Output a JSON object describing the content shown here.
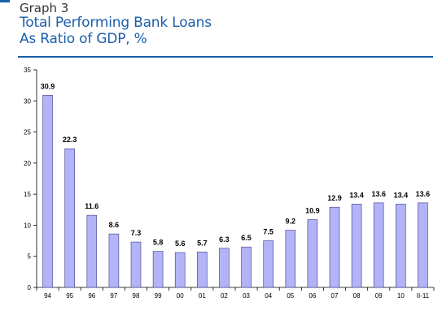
{
  "header": {
    "graph_number": "Graph 3",
    "title_line1": "Total Performing Bank Loans",
    "title_line2": "As Ratio of GDP,  %"
  },
  "colors": {
    "title": "#1b5ea9",
    "bar_fill": "#b3b3f7",
    "bar_stroke": "#4d4d9a"
  },
  "chart_data": {
    "type": "bar",
    "title": "Total Performing Bank Loans As Ratio of GDP,  %",
    "xlabel": "",
    "ylabel": "",
    "categories": [
      "94",
      "95",
      "96",
      "97",
      "98",
      "99",
      "00",
      "01",
      "02",
      "03",
      "04",
      "05",
      "06",
      "07",
      "08",
      "09",
      "10",
      "II-11"
    ],
    "values": [
      30.9,
      22.3,
      11.6,
      8.6,
      7.3,
      5.8,
      5.6,
      5.7,
      6.3,
      6.5,
      7.5,
      9.2,
      10.9,
      12.9,
      13.4,
      13.6,
      13.4,
      13.6
    ],
    "data_labels": [
      "30.9",
      "22.3",
      "11.6",
      "8.6",
      "7.3",
      "5.8",
      "5.6",
      "5.7",
      "6.3",
      "6.5",
      "7.5",
      "9.2",
      "10.9",
      "12.9",
      "13.4",
      "13.6",
      "13.4",
      "13.6"
    ],
    "ylim": [
      0,
      35
    ],
    "yticks": [
      0,
      5,
      10,
      15,
      20,
      25,
      30,
      35
    ],
    "grid": false,
    "legend": "none"
  }
}
